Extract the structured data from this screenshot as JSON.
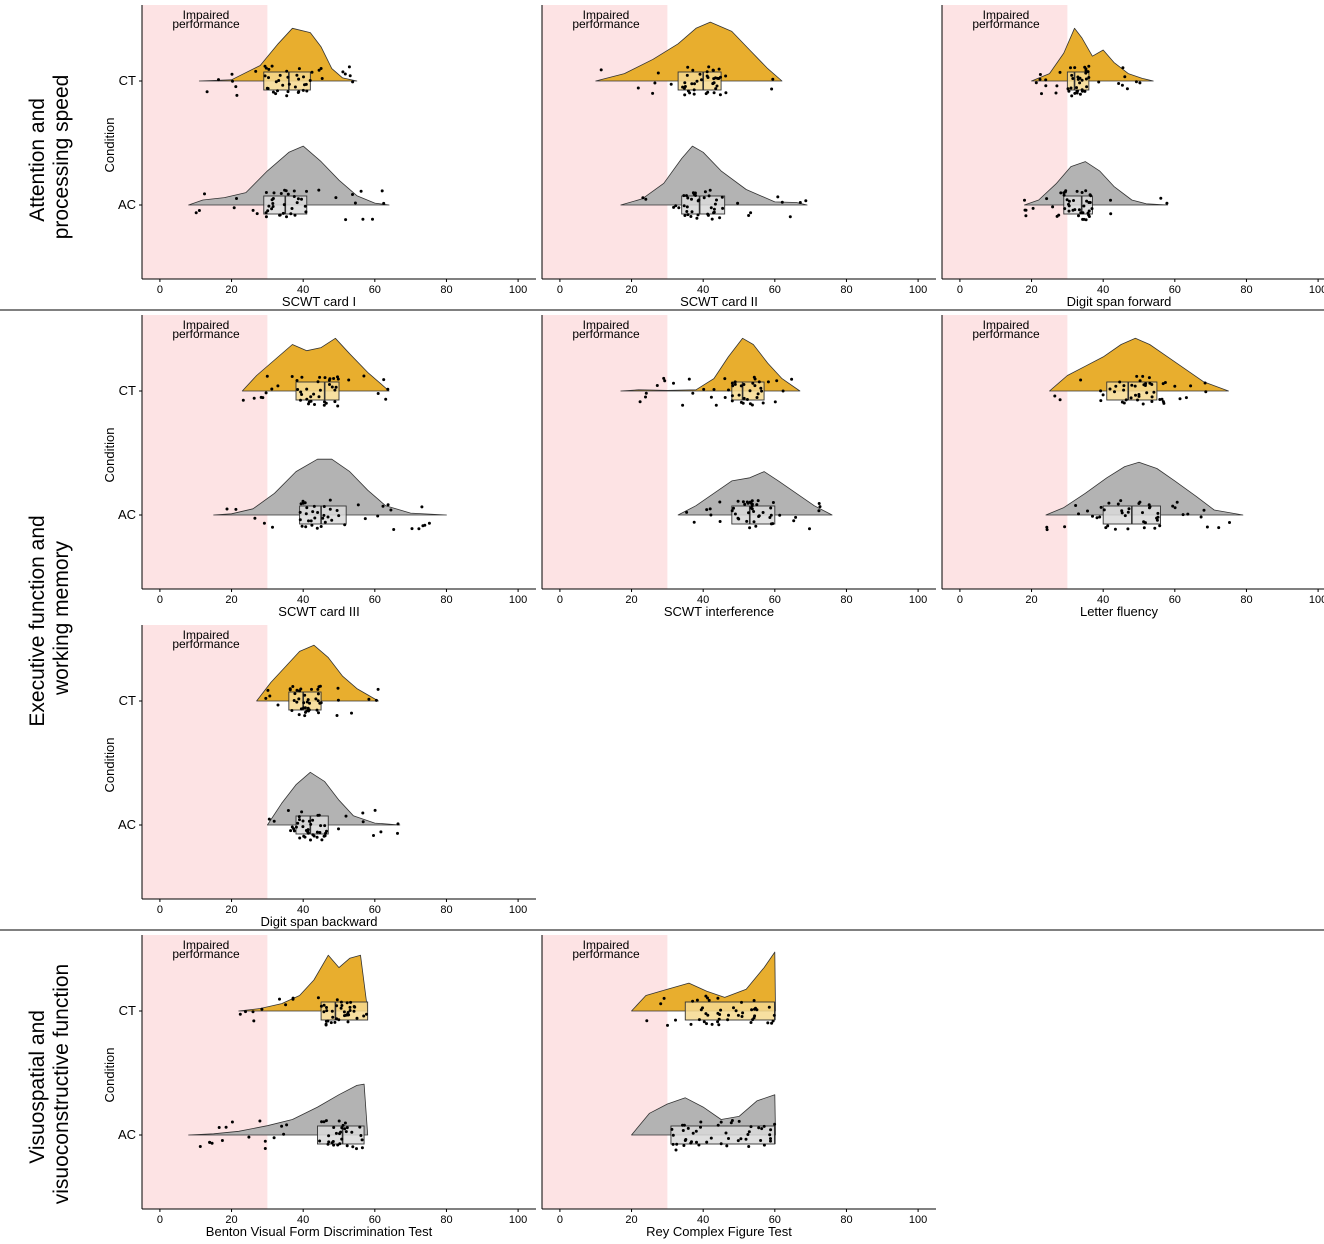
{
  "figure": {
    "sections": [
      {
        "label_lines": [
          "Attention and",
          "processing speed"
        ]
      },
      {
        "label_lines": [
          "Executive function and",
          "working memory"
        ]
      },
      {
        "label_lines": [
          "Visuospatial and",
          "visuoconstructive function"
        ]
      }
    ],
    "impaired_band_label": [
      "Impaired",
      "performance"
    ],
    "impaired_threshold": 30,
    "y_axis_title": "Condition",
    "colors": {
      "CT": "#E8AE2E",
      "AC": "#B3B3B3",
      "band": "#FDE3E4",
      "CT_box": "#F6D98F",
      "AC_box": "#D9D9D9"
    }
  },
  "chart_data": [
    {
      "type": "raincloud",
      "xlabel": "SCWT card I",
      "xlim": [
        -5,
        105
      ],
      "xticks": [
        0,
        20,
        40,
        60,
        80,
        100
      ],
      "categories": [
        "CT",
        "AC"
      ],
      "series": [
        {
          "name": "CT",
          "range": [
            11,
            55
          ],
          "q1": 29,
          "median": 36,
          "q3": 42,
          "density": [
            [
              11,
              0
            ],
            [
              20,
              0.02
            ],
            [
              28,
              0.25
            ],
            [
              33,
              0.6
            ],
            [
              37,
              0.85
            ],
            [
              42,
              0.78
            ],
            [
              45,
              0.55
            ],
            [
              48,
              0.2
            ],
            [
              51,
              0.05
            ],
            [
              55,
              0
            ]
          ]
        },
        {
          "name": "AC",
          "range": [
            8,
            64
          ],
          "q1": 29,
          "median": 35,
          "q3": 41,
          "density": [
            [
              8,
              0
            ],
            [
              12,
              0.08
            ],
            [
              18,
              0.12
            ],
            [
              24,
              0.2
            ],
            [
              30,
              0.55
            ],
            [
              36,
              0.85
            ],
            [
              40,
              0.95
            ],
            [
              45,
              0.7
            ],
            [
              50,
              0.4
            ],
            [
              55,
              0.15
            ],
            [
              60,
              0.03
            ],
            [
              64,
              0
            ]
          ]
        }
      ]
    },
    {
      "type": "raincloud",
      "xlabel": "SCWT card II",
      "xlim": [
        -5,
        105
      ],
      "xticks": [
        0,
        20,
        40,
        60,
        80,
        100
      ],
      "categories": [
        "CT",
        "AC"
      ],
      "series": [
        {
          "name": "CT",
          "range": [
            10,
            62
          ],
          "q1": 33,
          "median": 40,
          "q3": 45,
          "density": [
            [
              10,
              0
            ],
            [
              18,
              0.12
            ],
            [
              26,
              0.35
            ],
            [
              33,
              0.6
            ],
            [
              38,
              0.85
            ],
            [
              42,
              0.95
            ],
            [
              48,
              0.8
            ],
            [
              53,
              0.5
            ],
            [
              58,
              0.2
            ],
            [
              62,
              0
            ]
          ]
        },
        {
          "name": "AC",
          "range": [
            17,
            69
          ],
          "q1": 34,
          "median": 39,
          "q3": 46,
          "density": [
            [
              17,
              0
            ],
            [
              23,
              0.1
            ],
            [
              29,
              0.35
            ],
            [
              34,
              0.75
            ],
            [
              37,
              0.95
            ],
            [
              40,
              0.85
            ],
            [
              45,
              0.55
            ],
            [
              52,
              0.25
            ],
            [
              60,
              0.05
            ],
            [
              66,
              0.04
            ],
            [
              69,
              0
            ]
          ]
        }
      ]
    },
    {
      "type": "raincloud",
      "xlabel": "Digit span forward",
      "xlim": [
        -5,
        105
      ],
      "xticks": [
        0,
        20,
        40,
        60,
        80,
        100
      ],
      "categories": [
        "CT",
        "AC"
      ],
      "series": [
        {
          "name": "CT",
          "range": [
            20,
            54
          ],
          "q1": 30,
          "median": 32,
          "q3": 36,
          "density": [
            [
              20,
              0
            ],
            [
              25,
              0.12
            ],
            [
              29,
              0.45
            ],
            [
              32,
              0.85
            ],
            [
              34,
              0.7
            ],
            [
              37,
              0.4
            ],
            [
              40,
              0.5
            ],
            [
              43,
              0.3
            ],
            [
              47,
              0.12
            ],
            [
              51,
              0.04
            ],
            [
              54,
              0
            ]
          ]
        },
        {
          "name": "AC",
          "range": [
            18,
            58
          ],
          "q1": 29,
          "median": 34,
          "q3": 37,
          "density": [
            [
              18,
              0
            ],
            [
              22,
              0.08
            ],
            [
              27,
              0.35
            ],
            [
              31,
              0.62
            ],
            [
              35,
              0.7
            ],
            [
              39,
              0.55
            ],
            [
              43,
              0.3
            ],
            [
              48,
              0.08
            ],
            [
              52,
              0.02
            ],
            [
              58,
              0
            ]
          ]
        }
      ]
    },
    {
      "type": "raincloud",
      "xlabel": "SCWT card III",
      "xlim": [
        -5,
        105
      ],
      "xticks": [
        0,
        20,
        40,
        60,
        80,
        100
      ],
      "categories": [
        "CT",
        "AC"
      ],
      "series": [
        {
          "name": "CT",
          "range": [
            23,
            64
          ],
          "q1": 38,
          "median": 46,
          "q3": 50,
          "density": [
            [
              23,
              0
            ],
            [
              27,
              0.25
            ],
            [
              32,
              0.5
            ],
            [
              37,
              0.75
            ],
            [
              41,
              0.65
            ],
            [
              45,
              0.7
            ],
            [
              49,
              0.85
            ],
            [
              53,
              0.6
            ],
            [
              58,
              0.3
            ],
            [
              62,
              0.1
            ],
            [
              64,
              0
            ]
          ]
        },
        {
          "name": "AC",
          "range": [
            15,
            80
          ],
          "q1": 39,
          "median": 45,
          "q3": 52,
          "density": [
            [
              15,
              0
            ],
            [
              20,
              0.02
            ],
            [
              26,
              0.1
            ],
            [
              32,
              0.35
            ],
            [
              38,
              0.7
            ],
            [
              44,
              0.9
            ],
            [
              48,
              0.9
            ],
            [
              53,
              0.7
            ],
            [
              58,
              0.4
            ],
            [
              63,
              0.15
            ],
            [
              70,
              0.03
            ],
            [
              80,
              0
            ]
          ]
        }
      ]
    },
    {
      "type": "raincloud",
      "xlabel": "SCWT interference",
      "xlim": [
        -5,
        105
      ],
      "xticks": [
        0,
        20,
        40,
        60,
        80,
        100
      ],
      "categories": [
        "CT",
        "AC"
      ],
      "series": [
        {
          "name": "CT",
          "range": [
            17,
            67
          ],
          "q1": 48,
          "median": 51,
          "q3": 57,
          "density": [
            [
              17,
              0
            ],
            [
              22,
              0.02
            ],
            [
              30,
              0.01
            ],
            [
              38,
              0.02
            ],
            [
              43,
              0.2
            ],
            [
              47,
              0.55
            ],
            [
              51,
              0.85
            ],
            [
              54,
              0.75
            ],
            [
              58,
              0.45
            ],
            [
              62,
              0.2
            ],
            [
              67,
              0
            ]
          ]
        },
        {
          "name": "AC",
          "range": [
            33,
            76
          ],
          "q1": 48,
          "median": 53,
          "q3": 60,
          "density": [
            [
              33,
              0
            ],
            [
              38,
              0.15
            ],
            [
              43,
              0.35
            ],
            [
              48,
              0.55
            ],
            [
              53,
              0.6
            ],
            [
              57,
              0.7
            ],
            [
              61,
              0.55
            ],
            [
              66,
              0.35
            ],
            [
              71,
              0.15
            ],
            [
              76,
              0
            ]
          ]
        }
      ]
    },
    {
      "type": "raincloud",
      "xlabel": "Letter fluency",
      "xlim": [
        -5,
        105
      ],
      "xticks": [
        0,
        20,
        40,
        60,
        80,
        100
      ],
      "categories": [
        "CT",
        "AC"
      ],
      "series": [
        {
          "name": "CT",
          "range": [
            25,
            75
          ],
          "q1": 41,
          "median": 47,
          "q3": 55,
          "density": [
            [
              25,
              0
            ],
            [
              30,
              0.25
            ],
            [
              35,
              0.4
            ],
            [
              40,
              0.55
            ],
            [
              45,
              0.75
            ],
            [
              49,
              0.85
            ],
            [
              53,
              0.75
            ],
            [
              58,
              0.55
            ],
            [
              63,
              0.35
            ],
            [
              68,
              0.15
            ],
            [
              75,
              0
            ]
          ]
        },
        {
          "name": "AC",
          "range": [
            24,
            79
          ],
          "q1": 40,
          "median": 48,
          "q3": 56,
          "density": [
            [
              24,
              0
            ],
            [
              29,
              0.12
            ],
            [
              35,
              0.35
            ],
            [
              41,
              0.6
            ],
            [
              46,
              0.78
            ],
            [
              50,
              0.85
            ],
            [
              55,
              0.75
            ],
            [
              60,
              0.55
            ],
            [
              66,
              0.3
            ],
            [
              71,
              0.08
            ],
            [
              79,
              0
            ]
          ]
        }
      ]
    },
    {
      "type": "raincloud",
      "xlabel": "Digit span backward",
      "xlim": [
        -5,
        105
      ],
      "xticks": [
        0,
        20,
        40,
        60,
        80,
        100
      ],
      "categories": [
        "CT",
        "AC"
      ],
      "series": [
        {
          "name": "CT",
          "range": [
            27,
            61
          ],
          "q1": 36,
          "median": 40,
          "q3": 45,
          "density": [
            [
              27,
              0
            ],
            [
              31,
              0.3
            ],
            [
              35,
              0.55
            ],
            [
              39,
              0.8
            ],
            [
              43,
              0.9
            ],
            [
              47,
              0.7
            ],
            [
              51,
              0.4
            ],
            [
              55,
              0.2
            ],
            [
              61,
              0
            ]
          ]
        },
        {
          "name": "AC",
          "range": [
            30,
            67
          ],
          "q1": 38,
          "median": 42,
          "q3": 47,
          "density": [
            [
              30,
              0
            ],
            [
              34,
              0.35
            ],
            [
              38,
              0.65
            ],
            [
              42,
              0.85
            ],
            [
              46,
              0.7
            ],
            [
              50,
              0.4
            ],
            [
              54,
              0.15
            ],
            [
              60,
              0.03
            ],
            [
              67,
              0
            ]
          ]
        }
      ]
    },
    {
      "type": "raincloud",
      "xlabel": "Benton Visual Form Discrimination Test",
      "xlim": [
        -5,
        105
      ],
      "xticks": [
        0,
        20,
        40,
        60,
        80,
        100
      ],
      "categories": [
        "CT",
        "AC"
      ],
      "series": [
        {
          "name": "CT",
          "range": [
            22,
            58
          ],
          "q1": 45,
          "median": 49,
          "q3": 58,
          "density": [
            [
              22,
              0
            ],
            [
              28,
              0.04
            ],
            [
              34,
              0.12
            ],
            [
              39,
              0.25
            ],
            [
              43,
              0.5
            ],
            [
              47,
              0.9
            ],
            [
              50,
              0.7
            ],
            [
              53,
              0.85
            ],
            [
              56,
              0.9
            ],
            [
              58,
              0
            ]
          ]
        },
        {
          "name": "AC",
          "range": [
            8,
            58
          ],
          "q1": 44,
          "median": 51,
          "q3": 57,
          "density": [
            [
              8,
              0
            ],
            [
              15,
              0.02
            ],
            [
              22,
              0.06
            ],
            [
              30,
              0.15
            ],
            [
              37,
              0.25
            ],
            [
              44,
              0.45
            ],
            [
              50,
              0.65
            ],
            [
              55,
              0.8
            ],
            [
              57,
              0.82
            ],
            [
              58,
              0
            ]
          ]
        }
      ]
    },
    {
      "type": "raincloud",
      "xlabel": "Rey Complex Figure Test",
      "xlim": [
        -5,
        105
      ],
      "xticks": [
        0,
        20,
        40,
        60,
        80,
        100
      ],
      "categories": [
        "CT",
        "AC"
      ],
      "series": [
        {
          "name": "CT",
          "range": [
            20,
            60
          ],
          "q1": 35,
          "median": 60,
          "q3": 60,
          "density": [
            [
              20,
              0
            ],
            [
              24,
              0.25
            ],
            [
              30,
              0.35
            ],
            [
              36,
              0.45
            ],
            [
              41,
              0.32
            ],
            [
              46,
              0.22
            ],
            [
              52,
              0.35
            ],
            [
              57,
              0.7
            ],
            [
              60,
              0.95
            ],
            [
              60.2,
              0
            ]
          ]
        },
        {
          "name": "AC",
          "range": [
            20,
            60
          ],
          "q1": 31,
          "median": 60,
          "q3": 60,
          "density": [
            [
              20,
              0
            ],
            [
              25,
              0.35
            ],
            [
              30,
              0.5
            ],
            [
              35,
              0.6
            ],
            [
              40,
              0.45
            ],
            [
              45,
              0.25
            ],
            [
              50,
              0.3
            ],
            [
              55,
              0.55
            ],
            [
              60,
              0.65
            ],
            [
              60.2,
              0
            ]
          ]
        }
      ]
    }
  ]
}
